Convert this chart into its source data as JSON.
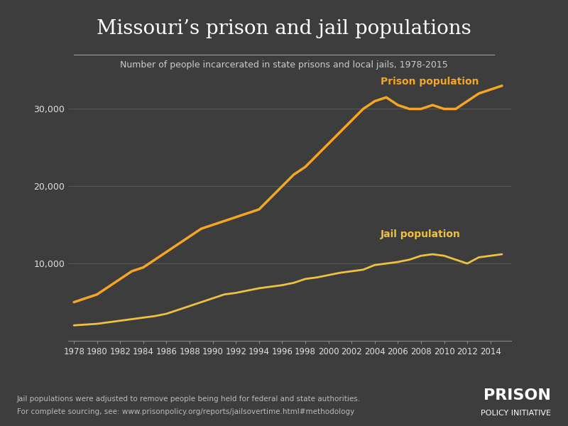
{
  "title": "Missouri’s prison and jail populations",
  "subtitle": "Number of people incarcerated in state prisons and local jails, 1978-2015",
  "footnote1": "Jail populations were adjusted to remove people being held for federal and state authorities.",
  "footnote2": "For complete sourcing, see: www.prisonpolicy.org/reports/jailsovertime.html#methodology",
  "logo_line1": "PRISON",
  "logo_line2": "POLICY INITIATIVE",
  "background_color": "#3d3d3d",
  "text_color": "#e0e0e0",
  "line_color_prison": "#f5a623",
  "line_color_jail": "#f0c040",
  "years": [
    1978,
    1979,
    1980,
    1981,
    1982,
    1983,
    1984,
    1985,
    1986,
    1987,
    1988,
    1989,
    1990,
    1991,
    1992,
    1993,
    1994,
    1995,
    1996,
    1997,
    1998,
    1999,
    2000,
    2001,
    2002,
    2003,
    2004,
    2005,
    2006,
    2007,
    2008,
    2009,
    2010,
    2011,
    2012,
    2013,
    2014,
    2015
  ],
  "prison": [
    5000,
    5500,
    6000,
    7000,
    8000,
    9000,
    9500,
    10500,
    11500,
    12500,
    13500,
    14500,
    15000,
    15500,
    16000,
    16500,
    17000,
    18500,
    20000,
    21500,
    22500,
    24000,
    25500,
    27000,
    28500,
    30000,
    31000,
    31500,
    30500,
    30000,
    30000,
    30500,
    30000,
    30000,
    31000,
    32000,
    32500,
    33000
  ],
  "jail": [
    2000,
    2100,
    2200,
    2400,
    2600,
    2800,
    3000,
    3200,
    3500,
    4000,
    4500,
    5000,
    5500,
    6000,
    6200,
    6500,
    6800,
    7000,
    7200,
    7500,
    8000,
    8200,
    8500,
    8800,
    9000,
    9200,
    9800,
    10000,
    10200,
    10500,
    11000,
    11200,
    11000,
    10500,
    10000,
    10800,
    11000,
    11200
  ],
  "ylim": [
    0,
    35000
  ],
  "yticks": [
    10000,
    20000,
    30000
  ],
  "xlabel_years": [
    1978,
    1980,
    1982,
    1984,
    1986,
    1988,
    1990,
    1992,
    1994,
    1996,
    1998,
    2000,
    2002,
    2004,
    2006,
    2008,
    2010,
    2012,
    2014
  ],
  "prison_label": "Prison population",
  "jail_label": "Jail population"
}
